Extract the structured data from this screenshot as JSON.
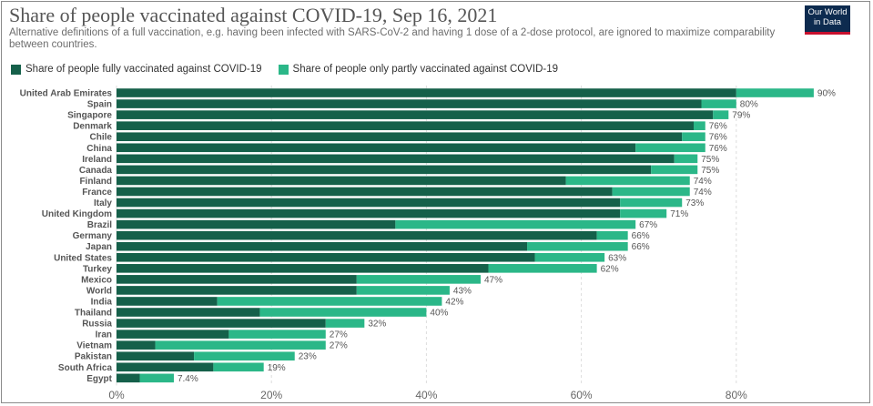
{
  "header": {
    "title": "Share of people vaccinated against COVID-19, Sep 16, 2021",
    "subtitle": "Alternative definitions of a full vaccination, e.g. having been infected with SARS-CoV-2 and having 1 dose of a 2-dose protocol, are ignored to maximize comparability between countries.",
    "logo_line1": "Our World",
    "logo_line2": "in Data"
  },
  "colors": {
    "full": "#15604a",
    "partial": "#2bb788",
    "logo_bg": "#0d2b4f",
    "logo_accent": "#c8102e"
  },
  "chart_data": {
    "type": "bar",
    "orientation": "horizontal",
    "stacked": true,
    "title": "Share of people vaccinated against COVID-19, Sep 16, 2021",
    "xlim": [
      0,
      90
    ],
    "xticks": [
      0,
      20,
      40,
      60,
      80
    ],
    "xtick_labels": [
      "0%",
      "20%",
      "40%",
      "60%",
      "80%"
    ],
    "grid": true,
    "legend_position": "top-left",
    "categories": [
      "United Arab Emirates",
      "Spain",
      "Singapore",
      "Denmark",
      "Chile",
      "China",
      "Ireland",
      "Canada",
      "Finland",
      "France",
      "Italy",
      "United Kingdom",
      "Brazil",
      "Germany",
      "Japan",
      "United States",
      "Turkey",
      "Mexico",
      "World",
      "India",
      "Thailand",
      "Russia",
      "Iran",
      "Vietnam",
      "Pakistan",
      "South Africa",
      "Egypt"
    ],
    "series": [
      {
        "name": "Share of people fully vaccinated against COVID-19",
        "values": [
          80,
          75.5,
          77,
          74.5,
          73,
          67,
          72,
          69,
          58,
          64,
          65,
          65,
          36,
          62,
          53,
          54,
          48,
          31,
          31,
          13,
          18.5,
          27,
          14.5,
          5,
          10,
          12.5,
          3
        ]
      },
      {
        "name": "Share of people only partly vaccinated against COVID-19",
        "values": [
          10,
          4.5,
          2,
          1.5,
          3,
          9,
          3,
          6,
          16,
          10,
          8,
          6,
          31,
          4,
          13,
          9,
          14,
          16,
          12,
          29,
          21.5,
          5,
          12.5,
          22,
          13,
          6.5,
          4.4
        ]
      }
    ],
    "total_labels": [
      "90%",
      "80%",
      "79%",
      "76%",
      "76%",
      "76%",
      "75%",
      "75%",
      "74%",
      "74%",
      "73%",
      "71%",
      "67%",
      "66%",
      "66%",
      "63%",
      "62%",
      "47%",
      "43%",
      "42%",
      "40%",
      "32%",
      "27%",
      "27%",
      "23%",
      "19%",
      "7.4%"
    ]
  }
}
